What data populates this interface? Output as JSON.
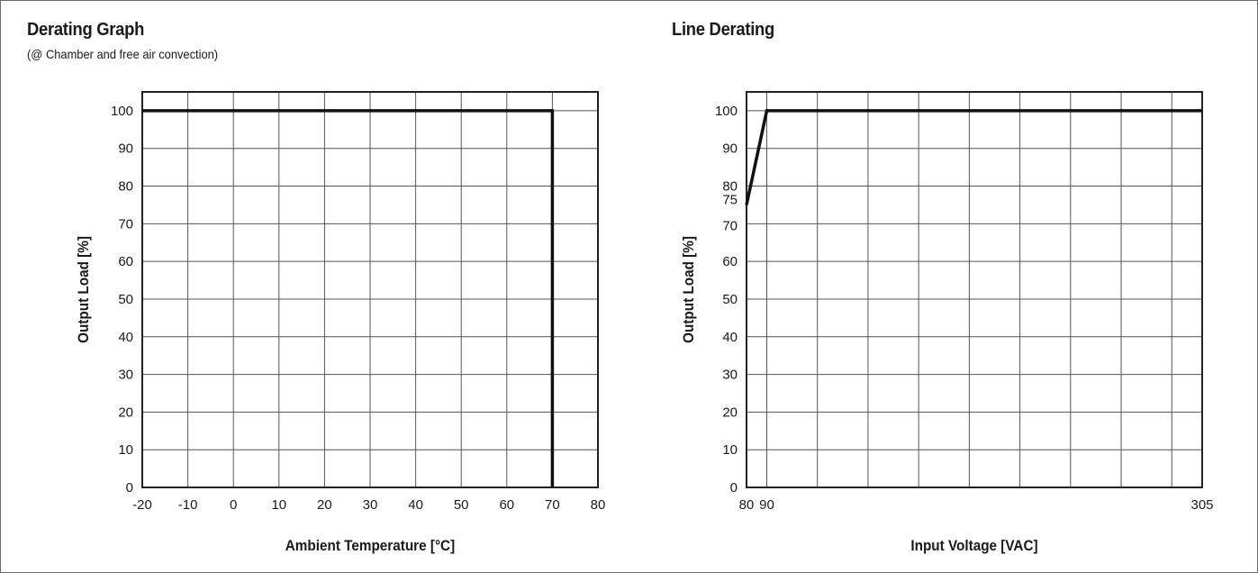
{
  "chart_data": [
    {
      "type": "line",
      "title": "Derating Graph",
      "subtitle": "(@ Chamber and free air convection)",
      "xlabel": "Ambient Temperature [°C]",
      "ylabel": "Output Load [%]",
      "xlim": [
        -20,
        80
      ],
      "ylim": [
        0,
        105
      ],
      "x_ticks": [
        -20,
        -10,
        0,
        10,
        20,
        30,
        40,
        50,
        60,
        70,
        80
      ],
      "y_ticks": [
        0,
        10,
        20,
        30,
        40,
        50,
        60,
        70,
        80,
        90,
        100
      ],
      "x_grid": [
        -20,
        -10,
        0,
        10,
        20,
        30,
        40,
        50,
        60,
        70,
        80
      ],
      "y_grid": [
        0,
        10,
        20,
        30,
        40,
        50,
        60,
        70,
        80,
        90,
        100
      ],
      "grid": true,
      "series": [
        {
          "x": [
            -20,
            70,
            70
          ],
          "y": [
            100,
            100,
            0
          ]
        }
      ]
    },
    {
      "type": "line",
      "title": "Line Derating",
      "subtitle": "",
      "xlabel": "Input Voltage [VAC]",
      "ylabel": "Output Load [%]",
      "xlim": [
        80,
        305
      ],
      "ylim": [
        0,
        105
      ],
      "x_ticks": [
        80,
        90,
        305
      ],
      "y_ticks": [
        0,
        10,
        20,
        30,
        40,
        50,
        60,
        70,
        75,
        80,
        90,
        100
      ],
      "x_grid": [
        80,
        90,
        115,
        140,
        165,
        190,
        215,
        240,
        265,
        290,
        305
      ],
      "y_grid": [
        0,
        10,
        20,
        30,
        40,
        50,
        60,
        70,
        80,
        90,
        100
      ],
      "grid": true,
      "series": [
        {
          "x": [
            80,
            90,
            305
          ],
          "y": [
            75,
            100,
            100
          ]
        }
      ]
    }
  ]
}
